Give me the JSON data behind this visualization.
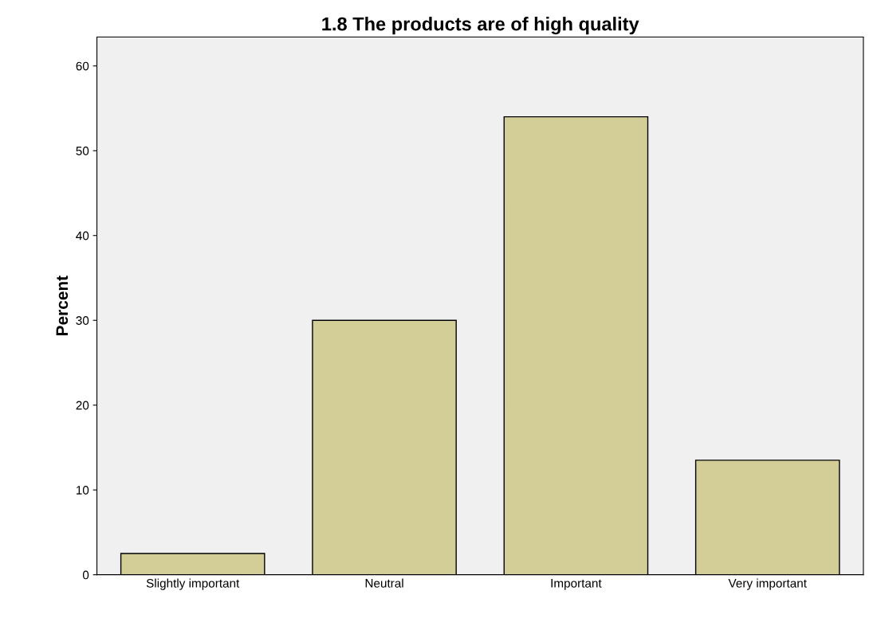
{
  "chart_data": {
    "type": "bar",
    "title": "1.8 The products are of high quality",
    "ylabel": "Percent",
    "categories": [
      "Slightly important",
      "Neutral",
      "Important",
      "Very important"
    ],
    "values": [
      2.5,
      30.0,
      54.0,
      13.5
    ],
    "color": "#d3ce97",
    "ylim": [
      0,
      63.4
    ],
    "yticks": [
      0,
      10,
      20,
      30,
      40,
      50,
      60
    ],
    "grid": false
  }
}
